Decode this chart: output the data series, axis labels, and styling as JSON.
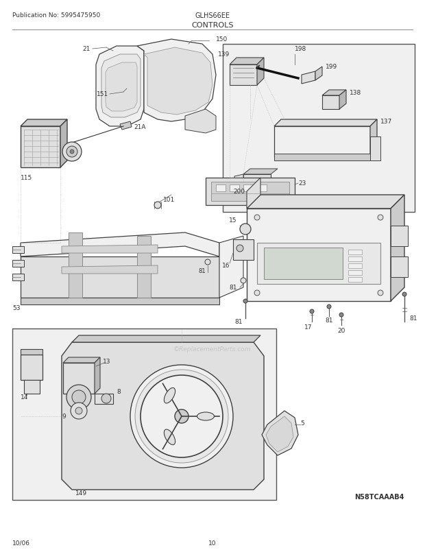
{
  "pub_no": "Publication No: 5995475950",
  "model": "GLHS66EE",
  "section": "CONTROLS",
  "diagram_id": "N58TCAAAB4",
  "date": "10/06",
  "page": "10",
  "bg_color": "#ffffff",
  "lc": "#404040",
  "tc": "#333333",
  "fc_light": "#f0f0f0",
  "fc_mid": "#e0e0e0",
  "fc_dark": "#cccccc",
  "figsize": [
    6.2,
    8.03
  ],
  "dpi": 100
}
